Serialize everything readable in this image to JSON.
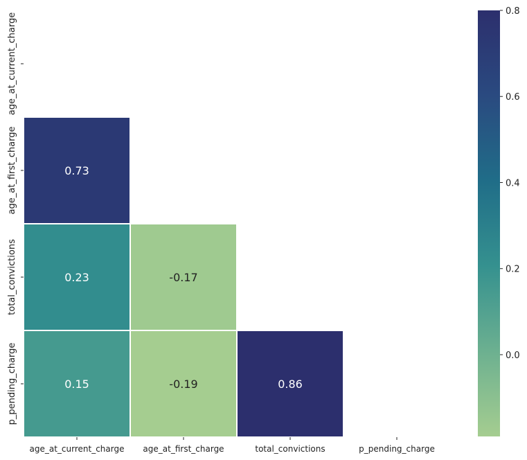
{
  "chart_data": {
    "type": "heatmap",
    "variables": [
      "age_at_current_charge",
      "age_at_first_charge",
      "total_convictions",
      "p_pending_charge"
    ],
    "mask": "upper-triangle-including-diagonal",
    "cells": [
      {
        "row": "age_at_first_charge",
        "col": "age_at_current_charge",
        "value": 0.73,
        "label": "0.73"
      },
      {
        "row": "total_convictions",
        "col": "age_at_current_charge",
        "value": 0.23,
        "label": "0.23"
      },
      {
        "row": "total_convictions",
        "col": "age_at_first_charge",
        "value": -0.17,
        "label": "-0.17"
      },
      {
        "row": "p_pending_charge",
        "col": "age_at_current_charge",
        "value": 0.15,
        "label": "0.15"
      },
      {
        "row": "p_pending_charge",
        "col": "age_at_first_charge",
        "value": -0.19,
        "label": "-0.19"
      },
      {
        "row": "p_pending_charge",
        "col": "total_convictions",
        "value": 0.86,
        "label": "0.86"
      }
    ],
    "colorbar": {
      "colormap": "crest",
      "range": [
        -0.19,
        0.8
      ],
      "ticks": [
        {
          "value": 0.8,
          "label": "0.8"
        },
        {
          "value": 0.6,
          "label": "0.6"
        },
        {
          "value": 0.4,
          "label": "0.4"
        },
        {
          "value": 0.2,
          "label": "0.2"
        },
        {
          "value": 0.0,
          "label": "0.0"
        }
      ]
    },
    "colors": {
      "stops": [
        "#a5cd90",
        "#6cb090",
        "#35918f",
        "#206d88",
        "#2a4a80",
        "#2c2f6d"
      ],
      "cell_border": "#ffffff",
      "label_dark": "#222222",
      "label_light": "#ffffff"
    }
  }
}
